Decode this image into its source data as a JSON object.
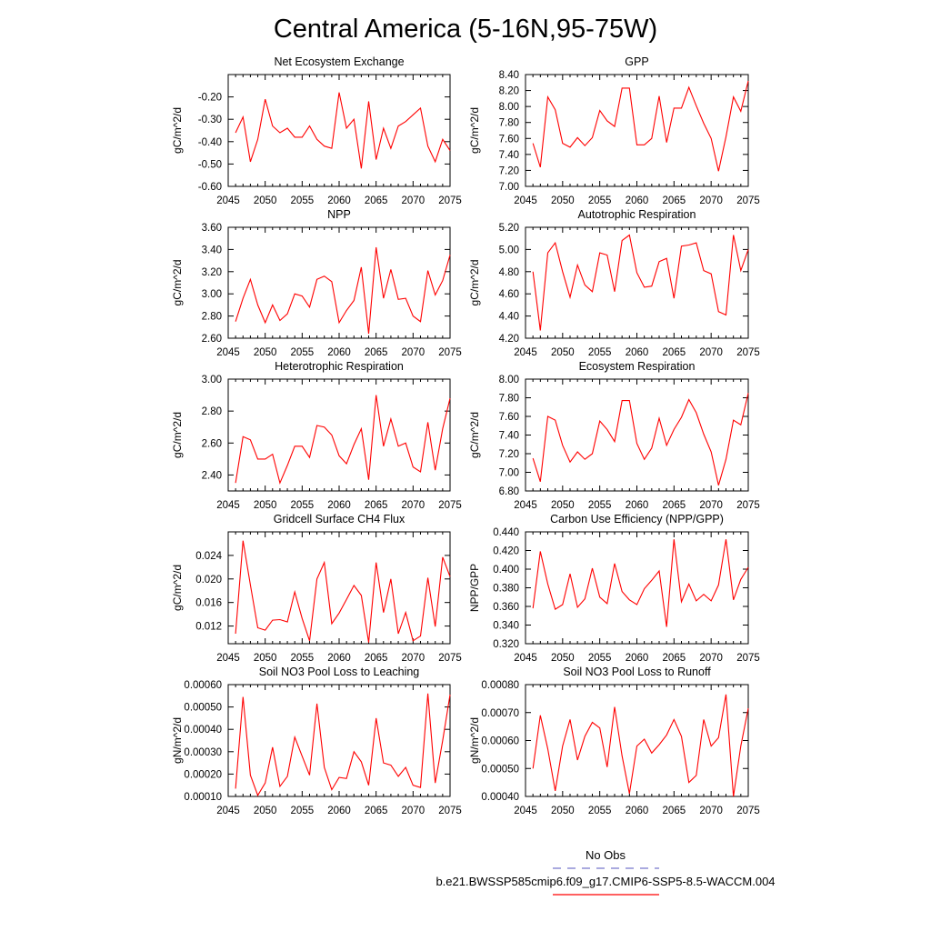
{
  "figure": {
    "title": "Central America (5-16N,95-75W)"
  },
  "legend": {
    "obs_label": "No Obs",
    "obs_color": "#7777cc",
    "model_label": "b.e21.BWSSP585cmip6.f09_g17.CMIP6-SSP5-8.5-WACCM.004",
    "model_color": "#ff0000"
  },
  "chart_data": [
    {
      "type": "line",
      "title": "Net Ecosystem Exchange",
      "ylabel": "gC/m^2/d",
      "xlim": [
        2045,
        2075
      ],
      "ylim": [
        -0.6,
        -0.1
      ],
      "xticks": [
        2045,
        2050,
        2055,
        2060,
        2065,
        2070,
        2075
      ],
      "yticks": [
        "-0.60",
        "-0.50",
        "-0.40",
        "-0.30",
        "-0.20"
      ],
      "x": [
        2046,
        2047,
        2048,
        2049,
        2050,
        2051,
        2052,
        2053,
        2054,
        2055,
        2056,
        2057,
        2058,
        2059,
        2060,
        2061,
        2062,
        2063,
        2064,
        2065,
        2066,
        2067,
        2068,
        2069,
        2070,
        2071,
        2072,
        2073,
        2074,
        2075
      ],
      "series": [
        {
          "values": [
            -0.36,
            -0.29,
            -0.49,
            -0.39,
            -0.21,
            -0.33,
            -0.36,
            -0.34,
            -0.38,
            -0.38,
            -0.33,
            -0.39,
            -0.42,
            -0.43,
            -0.18,
            -0.34,
            -0.3,
            -0.52,
            -0.22,
            -0.48,
            -0.34,
            -0.43,
            -0.33,
            -0.31,
            -0.28,
            -0.25,
            -0.42,
            -0.49,
            -0.39,
            -0.44
          ],
          "color": "#ff0000"
        }
      ]
    },
    {
      "type": "line",
      "title": "GPP",
      "ylabel": "gC/m^2/d",
      "xlim": [
        2045,
        2075
      ],
      "ylim": [
        7.0,
        8.4
      ],
      "xticks": [
        2045,
        2050,
        2055,
        2060,
        2065,
        2070,
        2075
      ],
      "yticks": [
        "7.00",
        "7.20",
        "7.40",
        "7.60",
        "7.80",
        "8.00",
        "8.20",
        "8.40"
      ],
      "x": [
        2046,
        2047,
        2048,
        2049,
        2050,
        2051,
        2052,
        2053,
        2054,
        2055,
        2056,
        2057,
        2058,
        2059,
        2060,
        2061,
        2062,
        2063,
        2064,
        2065,
        2066,
        2067,
        2068,
        2069,
        2070,
        2071,
        2072,
        2073,
        2074,
        2075
      ],
      "series": [
        {
          "values": [
            7.54,
            7.24,
            8.12,
            7.96,
            7.54,
            7.49,
            7.61,
            7.51,
            7.61,
            7.95,
            7.82,
            7.75,
            8.23,
            8.23,
            7.52,
            7.52,
            7.6,
            8.13,
            7.55,
            7.98,
            7.98,
            8.24,
            8.01,
            7.79,
            7.6,
            7.19,
            7.62,
            8.12,
            7.94,
            8.32
          ],
          "color": "#ff0000"
        }
      ]
    },
    {
      "type": "line",
      "title": "NPP",
      "ylabel": "gC/m^2/d",
      "xlim": [
        2045,
        2075
      ],
      "ylim": [
        2.6,
        3.6
      ],
      "xticks": [
        2045,
        2050,
        2055,
        2060,
        2065,
        2070,
        2075
      ],
      "yticks": [
        "2.60",
        "2.80",
        "3.00",
        "3.20",
        "3.40",
        "3.60"
      ],
      "x": [
        2046,
        2047,
        2048,
        2049,
        2050,
        2051,
        2052,
        2053,
        2054,
        2055,
        2056,
        2057,
        2058,
        2059,
        2060,
        2061,
        2062,
        2063,
        2064,
        2065,
        2066,
        2067,
        2068,
        2069,
        2070,
        2071,
        2072,
        2073,
        2074,
        2075
      ],
      "series": [
        {
          "values": [
            2.75,
            2.96,
            3.13,
            2.9,
            2.74,
            2.9,
            2.76,
            2.82,
            3.0,
            2.98,
            2.88,
            3.13,
            3.16,
            3.11,
            2.74,
            2.85,
            2.94,
            3.24,
            2.64,
            3.42,
            2.96,
            3.22,
            2.95,
            2.96,
            2.8,
            2.75,
            3.21,
            2.99,
            3.12,
            3.35
          ],
          "color": "#ff0000"
        }
      ]
    },
    {
      "type": "line",
      "title": "Autotrophic Respiration",
      "ylabel": "gC/m^2/d",
      "xlim": [
        2045,
        2075
      ],
      "ylim": [
        4.2,
        5.2
      ],
      "xticks": [
        2045,
        2050,
        2055,
        2060,
        2065,
        2070,
        2075
      ],
      "yticks": [
        "4.20",
        "4.40",
        "4.60",
        "4.80",
        "5.00",
        "5.20"
      ],
      "x": [
        2046,
        2047,
        2048,
        2049,
        2050,
        2051,
        2052,
        2053,
        2054,
        2055,
        2056,
        2057,
        2058,
        2059,
        2060,
        2061,
        2062,
        2063,
        2064,
        2065,
        2066,
        2067,
        2068,
        2069,
        2070,
        2071,
        2072,
        2073,
        2074,
        2075
      ],
      "series": [
        {
          "values": [
            4.8,
            4.27,
            4.97,
            5.06,
            4.8,
            4.57,
            4.86,
            4.68,
            4.62,
            4.97,
            4.95,
            4.62,
            5.08,
            5.13,
            4.79,
            4.66,
            4.67,
            4.89,
            4.92,
            4.56,
            5.03,
            5.04,
            5.06,
            4.81,
            4.78,
            4.44,
            4.41,
            5.13,
            4.81,
            5.0
          ],
          "color": "#ff0000"
        }
      ]
    },
    {
      "type": "line",
      "title": "Heterotrophic Respiration",
      "ylabel": "gC/m^2/d",
      "xlim": [
        2045,
        2075
      ],
      "ylim": [
        2.3,
        3.0
      ],
      "xticks": [
        2045,
        2050,
        2055,
        2060,
        2065,
        2070,
        2075
      ],
      "yticks": [
        "2.40",
        "2.60",
        "2.80",
        "3.00"
      ],
      "x": [
        2046,
        2047,
        2048,
        2049,
        2050,
        2051,
        2052,
        2053,
        2054,
        2055,
        2056,
        2057,
        2058,
        2059,
        2060,
        2061,
        2062,
        2063,
        2064,
        2065,
        2066,
        2067,
        2068,
        2069,
        2070,
        2071,
        2072,
        2073,
        2074,
        2075
      ],
      "series": [
        {
          "values": [
            2.35,
            2.64,
            2.62,
            2.5,
            2.5,
            2.53,
            2.35,
            2.46,
            2.58,
            2.58,
            2.51,
            2.71,
            2.7,
            2.65,
            2.52,
            2.47,
            2.59,
            2.69,
            2.37,
            2.9,
            2.58,
            2.75,
            2.58,
            2.6,
            2.45,
            2.42,
            2.73,
            2.43,
            2.69,
            2.88
          ],
          "color": "#ff0000"
        }
      ]
    },
    {
      "type": "line",
      "title": "Ecosystem Respiration",
      "ylabel": "gC/m^2/d",
      "xlim": [
        2045,
        2075
      ],
      "ylim": [
        6.8,
        8.0
      ],
      "xticks": [
        2045,
        2050,
        2055,
        2060,
        2065,
        2070,
        2075
      ],
      "yticks": [
        "6.80",
        "7.00",
        "7.20",
        "7.40",
        "7.60",
        "7.80",
        "8.00"
      ],
      "x": [
        2046,
        2047,
        2048,
        2049,
        2050,
        2051,
        2052,
        2053,
        2054,
        2055,
        2056,
        2057,
        2058,
        2059,
        2060,
        2061,
        2062,
        2063,
        2064,
        2065,
        2066,
        2067,
        2068,
        2069,
        2070,
        2071,
        2072,
        2073,
        2074,
        2075
      ],
      "series": [
        {
          "values": [
            7.15,
            6.9,
            7.6,
            7.56,
            7.29,
            7.11,
            7.22,
            7.14,
            7.2,
            7.55,
            7.46,
            7.33,
            7.77,
            7.77,
            7.31,
            7.14,
            7.26,
            7.58,
            7.29,
            7.46,
            7.59,
            7.78,
            7.64,
            7.41,
            7.22,
            6.86,
            7.14,
            7.56,
            7.51,
            7.85
          ],
          "color": "#ff0000"
        }
      ]
    },
    {
      "type": "line",
      "title": "Gridcell Surface CH4 Flux",
      "ylabel": "gC/m^2/d",
      "xlim": [
        2045,
        2075
      ],
      "ylim": [
        0.009,
        0.028
      ],
      "xticks": [
        2045,
        2050,
        2055,
        2060,
        2065,
        2070,
        2075
      ],
      "yticks": [
        "0.012",
        "0.016",
        "0.020",
        "0.024"
      ],
      "x": [
        2046,
        2047,
        2048,
        2049,
        2050,
        2051,
        2052,
        2053,
        2054,
        2055,
        2056,
        2057,
        2058,
        2059,
        2060,
        2061,
        2062,
        2063,
        2064,
        2065,
        2066,
        2067,
        2068,
        2069,
        2070,
        2071,
        2072,
        2073,
        2074,
        2075
      ],
      "series": [
        {
          "values": [
            0.0107,
            0.0265,
            0.019,
            0.0117,
            0.0113,
            0.013,
            0.0131,
            0.0127,
            0.0178,
            0.0133,
            0.0095,
            0.02,
            0.0228,
            0.0124,
            0.0142,
            0.0165,
            0.0189,
            0.0172,
            0.0092,
            0.0228,
            0.0143,
            0.02,
            0.0107,
            0.0143,
            0.0095,
            0.0103,
            0.0202,
            0.0119,
            0.0237,
            0.0204
          ],
          "color": "#ff0000"
        }
      ]
    },
    {
      "type": "line",
      "title": "Carbon Use Efficiency (NPP/GPP)",
      "ylabel": "NPP/GPP",
      "xlim": [
        2045,
        2075
      ],
      "ylim": [
        0.32,
        0.44
      ],
      "xticks": [
        2045,
        2050,
        2055,
        2060,
        2065,
        2070,
        2075
      ],
      "yticks": [
        "0.320",
        "0.340",
        "0.360",
        "0.380",
        "0.400",
        "0.420",
        "0.440"
      ],
      "x": [
        2046,
        2047,
        2048,
        2049,
        2050,
        2051,
        2052,
        2053,
        2054,
        2055,
        2056,
        2057,
        2058,
        2059,
        2060,
        2061,
        2062,
        2063,
        2064,
        2065,
        2066,
        2067,
        2068,
        2069,
        2070,
        2071,
        2072,
        2073,
        2074,
        2075
      ],
      "series": [
        {
          "values": [
            0.358,
            0.419,
            0.384,
            0.357,
            0.362,
            0.395,
            0.359,
            0.368,
            0.401,
            0.37,
            0.363,
            0.406,
            0.376,
            0.367,
            0.362,
            0.379,
            0.388,
            0.398,
            0.338,
            0.432,
            0.365,
            0.384,
            0.366,
            0.373,
            0.366,
            0.383,
            0.432,
            0.367,
            0.389,
            0.402
          ],
          "color": "#ff0000"
        }
      ]
    },
    {
      "type": "line",
      "title": "Soil NO3 Pool Loss to Leaching",
      "ylabel": "gN/m^2/d",
      "xlim": [
        2045,
        2075
      ],
      "ylim": [
        0.0001,
        0.0006
      ],
      "xticks": [
        2045,
        2050,
        2055,
        2060,
        2065,
        2070,
        2075
      ],
      "yticks": [
        "0.00010",
        "0.00020",
        "0.00030",
        "0.00040",
        "0.00050",
        "0.00060"
      ],
      "x": [
        2046,
        2047,
        2048,
        2049,
        2050,
        2051,
        2052,
        2053,
        2054,
        2055,
        2056,
        2057,
        2058,
        2059,
        2060,
        2061,
        2062,
        2063,
        2064,
        2065,
        2066,
        2067,
        2068,
        2069,
        2070,
        2071,
        2072,
        2073,
        2074,
        2075
      ],
      "series": [
        {
          "values": [
            0.000135,
            0.000545,
            0.000195,
            0.000105,
            0.00016,
            0.00032,
            0.000145,
            0.00019,
            0.000365,
            0.00028,
            0.000195,
            0.000515,
            0.00023,
            0.00013,
            0.000185,
            0.00018,
            0.0003,
            0.000255,
            0.00015,
            0.00045,
            0.00025,
            0.00024,
            0.00019,
            0.00023,
            0.00015,
            0.00014,
            0.00056,
            0.00016,
            0.00035,
            0.000555
          ],
          "color": "#ff0000"
        }
      ]
    },
    {
      "type": "line",
      "title": "Soil NO3 Pool Loss to Runoff",
      "ylabel": "gN/m^2/d",
      "xlim": [
        2045,
        2075
      ],
      "ylim": [
        0.0004,
        0.0008
      ],
      "xticks": [
        2045,
        2050,
        2055,
        2060,
        2065,
        2070,
        2075
      ],
      "yticks": [
        "0.00040",
        "0.00050",
        "0.00060",
        "0.00070",
        "0.00080"
      ],
      "x": [
        2046,
        2047,
        2048,
        2049,
        2050,
        2051,
        2052,
        2053,
        2054,
        2055,
        2056,
        2057,
        2058,
        2059,
        2060,
        2061,
        2062,
        2063,
        2064,
        2065,
        2066,
        2067,
        2068,
        2069,
        2070,
        2071,
        2072,
        2073,
        2074,
        2075
      ],
      "series": [
        {
          "values": [
            0.0005,
            0.00069,
            0.00057,
            0.00042,
            0.00058,
            0.000675,
            0.00053,
            0.000615,
            0.000665,
            0.000645,
            0.000505,
            0.00072,
            0.000545,
            0.00041,
            0.00058,
            0.000605,
            0.000555,
            0.000585,
            0.00062,
            0.000675,
            0.000615,
            0.00045,
            0.000475,
            0.000675,
            0.00058,
            0.00061,
            0.000765,
            0.0004,
            0.00058,
            0.000715
          ],
          "color": "#ff0000"
        }
      ]
    }
  ]
}
